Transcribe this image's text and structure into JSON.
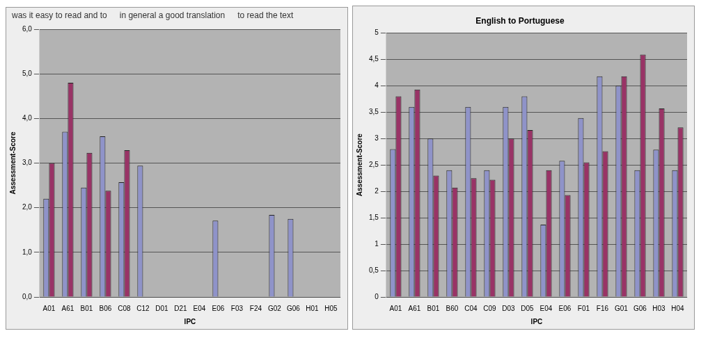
{
  "chart_data": [
    {
      "type": "bar",
      "xlabel": "IPC",
      "ylabel": "Assessment-Score",
      "annotations": [
        "was it easy to read and to",
        "in general a good translation",
        "to read the text"
      ],
      "categories": [
        "A01",
        "A61",
        "B01",
        "B06",
        "C08",
        "C12",
        "D01",
        "D21",
        "E04",
        "E06",
        "F03",
        "F24",
        "G02",
        "G06",
        "H01",
        "H05"
      ],
      "series": [
        {
          "color": "#8f93c9",
          "values": [
            2.2,
            3.7,
            2.45,
            3.6,
            2.57,
            2.94,
            null,
            null,
            null,
            1.71,
            null,
            null,
            1.84,
            1.75,
            null,
            null
          ]
        },
        {
          "color": "#993366",
          "values": [
            3.0,
            4.8,
            3.23,
            2.38,
            3.29,
            null,
            null,
            null,
            null,
            null,
            null,
            null,
            null,
            null,
            null,
            null
          ]
        }
      ],
      "ylim": [
        0,
        6
      ],
      "yticks": [
        {
          "value": 0,
          "label": "0,0"
        },
        {
          "value": 1,
          "label": "1,0"
        },
        {
          "value": 2,
          "label": "2,0"
        },
        {
          "value": 3,
          "label": "3,0"
        },
        {
          "value": 4,
          "label": "4,0"
        },
        {
          "value": 5,
          "label": "5,0"
        },
        {
          "value": 6,
          "label": "6,0"
        }
      ],
      "grid": "y",
      "legend": false
    },
    {
      "type": "bar",
      "title": "English to Portuguese",
      "xlabel": "IPC",
      "ylabel": "Assessment-Score",
      "categories": [
        "A01",
        "A61",
        "B01",
        "B60",
        "C04",
        "C09",
        "D03",
        "D05",
        "E04",
        "E06",
        "F01",
        "F16",
        "G01",
        "G06",
        "H03",
        "H04"
      ],
      "series": [
        {
          "color": "#8f93c9",
          "values": [
            2.8,
            3.6,
            3.0,
            2.4,
            3.6,
            2.4,
            3.6,
            3.8,
            1.37,
            2.58,
            3.39,
            4.18,
            4.0,
            2.4,
            2.79,
            2.4
          ]
        },
        {
          "color": "#993366",
          "values": [
            3.8,
            3.93,
            2.3,
            2.07,
            2.25,
            2.22,
            3.0,
            3.16,
            2.4,
            1.93,
            2.55,
            2.76,
            4.18,
            4.59,
            3.57,
            3.21
          ]
        }
      ],
      "ylim": [
        0,
        5
      ],
      "yticks": [
        0,
        {
          "value": 0.5,
          "label": "0,5"
        },
        1,
        {
          "value": 1.5,
          "label": "1,5"
        },
        2,
        {
          "value": 2.5,
          "label": "2,5"
        },
        3,
        {
          "value": 3.5,
          "label": "3,5"
        },
        4,
        {
          "value": 4.5,
          "label": "4,5"
        },
        5
      ],
      "grid": "y",
      "legend": false
    }
  ]
}
